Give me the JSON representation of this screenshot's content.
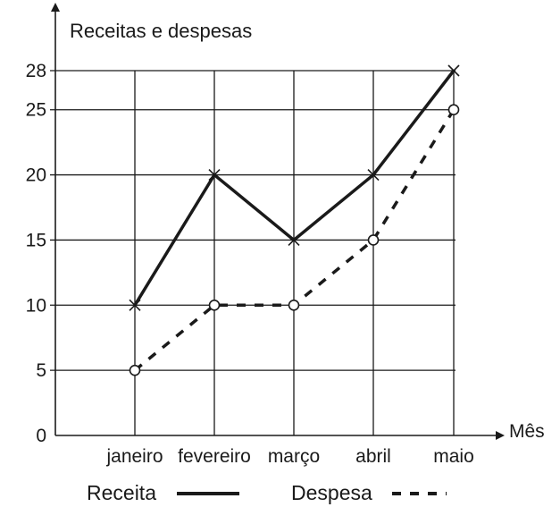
{
  "chart_data": {
    "type": "line",
    "title": "",
    "ylabel": "Receitas e despesas",
    "xlabel": "Mês",
    "categories": [
      "janeiro",
      "fevereiro",
      "março",
      "abril",
      "maio"
    ],
    "yticks": [
      0,
      5,
      10,
      15,
      20,
      25,
      28
    ],
    "ylim": [
      0,
      28
    ],
    "grid": true,
    "legend_position": "bottom",
    "series": [
      {
        "name": "Receita",
        "values": [
          10,
          20,
          15,
          20,
          28
        ],
        "line_style": "solid",
        "marker": "cross",
        "color": "#1a1a1a"
      },
      {
        "name": "Despesa",
        "values": [
          5,
          10,
          10,
          15,
          25
        ],
        "line_style": "dashed",
        "marker": "circle",
        "color": "#1a1a1a"
      }
    ]
  }
}
